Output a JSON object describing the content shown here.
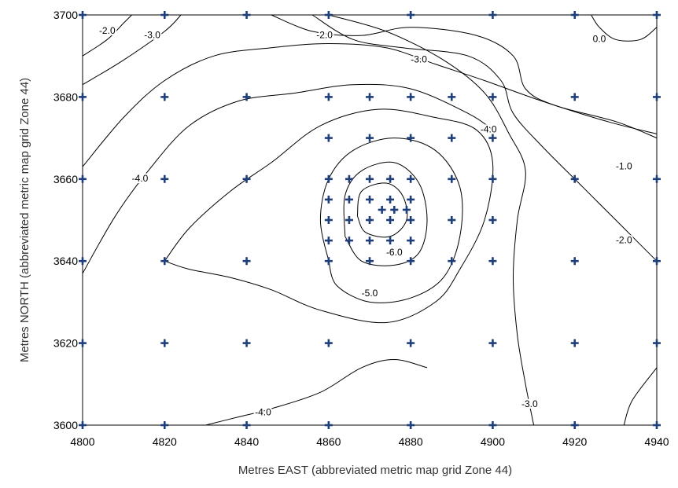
{
  "chart_data": {
    "type": "contour",
    "xlabel": "Metres EAST (abbreviated metric map grid Zone 44)",
    "ylabel": "Metres NORTH (abbreviated metric map grid Zone 44)",
    "xlim": [
      4800,
      4940
    ],
    "ylim": [
      3600,
      3700
    ],
    "xticks": [
      4800,
      4820,
      4840,
      4860,
      4880,
      4900,
      4920,
      4940
    ],
    "yticks": [
      3600,
      3620,
      3640,
      3660,
      3680,
      3700
    ],
    "marker_color": "#1f3f7a",
    "contour_labels": [
      {
        "text": "-2.0",
        "x": 4806,
        "y": 3696
      },
      {
        "text": "-3.0",
        "x": 4817,
        "y": 3695
      },
      {
        "text": "-2.0",
        "x": 4859,
        "y": 3695
      },
      {
        "text": "0.0",
        "x": 4926,
        "y": 3694
      },
      {
        "text": "-3.0",
        "x": 4882,
        "y": 3689
      },
      {
        "text": "-4.0",
        "x": 4899,
        "y": 3672
      },
      {
        "text": "-1.0",
        "x": 4932,
        "y": 3663
      },
      {
        "text": "-4.0",
        "x": 4814,
        "y": 3660
      },
      {
        "text": "-2.0",
        "x": 4932,
        "y": 3645
      },
      {
        "text": "-6.0",
        "x": 4876,
        "y": 3642
      },
      {
        "text": "-5.0",
        "x": 4870,
        "y": 3632
      },
      {
        "text": "-3.0",
        "x": 4909,
        "y": 3605
      },
      {
        "text": "-4.0",
        "x": 4844,
        "y": 3603
      }
    ],
    "contours": [
      {
        "level": "-2.0",
        "points": [
          [
            4800,
            3690
          ],
          [
            4806,
            3694
          ],
          [
            4810,
            3698
          ],
          [
            4812,
            3700
          ]
        ]
      },
      {
        "level": "-2.0",
        "points": [
          [
            4800,
            3683
          ],
          [
            4810,
            3689
          ],
          [
            4820,
            3696
          ],
          [
            4824,
            3700
          ]
        ]
      },
      {
        "level": "-3.0",
        "points": [
          [
            4800,
            3663
          ],
          [
            4810,
            3675
          ],
          [
            4820,
            3684
          ],
          [
            4832,
            3690
          ],
          [
            4846,
            3692
          ],
          [
            4860,
            3693
          ],
          [
            4874,
            3692
          ],
          [
            4886,
            3688
          ],
          [
            4898,
            3684
          ],
          [
            4912,
            3679
          ],
          [
            4928,
            3674
          ],
          [
            4940,
            3671
          ]
        ]
      },
      {
        "level": "-2.0",
        "points": [
          [
            4846,
            3700
          ],
          [
            4856,
            3696
          ],
          [
            4868,
            3695
          ],
          [
            4880,
            3697
          ],
          [
            4896,
            3695
          ],
          [
            4905,
            3690
          ],
          [
            4908,
            3682
          ],
          [
            4915,
            3678
          ],
          [
            4930,
            3674
          ],
          [
            4940,
            3670
          ]
        ]
      },
      {
        "level": "0.0",
        "points": [
          [
            4924,
            3700
          ],
          [
            4926,
            3697
          ],
          [
            4930,
            3694
          ],
          [
            4936,
            3694
          ],
          [
            4940,
            3697
          ]
        ]
      },
      {
        "level": "-3.0",
        "points": [
          [
            4856,
            3700
          ],
          [
            4866,
            3694
          ],
          [
            4878,
            3692
          ],
          [
            4894,
            3690
          ],
          [
            4902,
            3684
          ],
          [
            4905,
            3676
          ],
          [
            4912,
            3668
          ],
          [
            4922,
            3658
          ],
          [
            4932,
            3648
          ],
          [
            4940,
            3640
          ]
        ]
      },
      {
        "level": "-4.0",
        "points": [
          [
            4800,
            3637
          ],
          [
            4808,
            3651
          ],
          [
            4816,
            3662
          ],
          [
            4826,
            3673
          ],
          [
            4838,
            3679
          ],
          [
            4852,
            3681
          ],
          [
            4866,
            3683
          ],
          [
            4880,
            3682
          ],
          [
            4894,
            3676
          ],
          [
            4900,
            3672
          ]
        ]
      },
      {
        "level": "-4.0",
        "points": [
          [
            4860,
            3700
          ],
          [
            4874,
            3696
          ],
          [
            4888,
            3689
          ],
          [
            4898,
            3681
          ],
          [
            4904,
            3671
          ],
          [
            4908,
            3662
          ],
          [
            4906,
            3650
          ],
          [
            4905,
            3636
          ],
          [
            4906,
            3622
          ],
          [
            4908,
            3610
          ],
          [
            4910,
            3600
          ]
        ]
      },
      {
        "level": "-4.0",
        "points": [
          [
            4820,
            3640
          ],
          [
            4826,
            3648
          ],
          [
            4836,
            3657
          ],
          [
            4846,
            3664
          ],
          [
            4858,
            3673
          ],
          [
            4872,
            3677
          ],
          [
            4886,
            3675
          ],
          [
            4896,
            3672
          ],
          [
            4900,
            3664
          ],
          [
            4898,
            3650
          ],
          [
            4892,
            3638
          ],
          [
            4886,
            3630
          ],
          [
            4874,
            3625
          ],
          [
            4858,
            3628
          ],
          [
            4846,
            3633
          ],
          [
            4836,
            3636
          ],
          [
            4826,
            3638
          ],
          [
            4820,
            3640
          ]
        ]
      },
      {
        "level": "-4.0",
        "points": [
          [
            4830,
            3600
          ],
          [
            4838,
            3602
          ],
          [
            4846,
            3604
          ],
          [
            4858,
            3608
          ],
          [
            4868,
            3614
          ],
          [
            4876,
            3616
          ],
          [
            4884,
            3614
          ]
        ]
      },
      {
        "level": "-5.0",
        "points": [
          [
            4860,
            3640
          ],
          [
            4858,
            3650
          ],
          [
            4860,
            3660
          ],
          [
            4866,
            3667
          ],
          [
            4876,
            3670
          ],
          [
            4886,
            3667
          ],
          [
            4892,
            3658
          ],
          [
            4892,
            3646
          ],
          [
            4888,
            3636
          ],
          [
            4880,
            3631
          ],
          [
            4870,
            3630
          ],
          [
            4862,
            3634
          ],
          [
            4860,
            3640
          ]
        ]
      },
      {
        "level": "-6.0",
        "points": [
          [
            4864,
            3646
          ],
          [
            4864,
            3656
          ],
          [
            4868,
            3662
          ],
          [
            4876,
            3664
          ],
          [
            4882,
            3659
          ],
          [
            4884,
            3650
          ],
          [
            4882,
            3642
          ],
          [
            4876,
            3639
          ],
          [
            4868,
            3640
          ],
          [
            4864,
            3646
          ]
        ]
      },
      {
        "level": "",
        "points": [
          [
            4867,
            3651
          ],
          [
            4868,
            3657
          ],
          [
            4874,
            3659
          ],
          [
            4878,
            3656
          ],
          [
            4879,
            3650
          ],
          [
            4875,
            3646
          ],
          [
            4869,
            3647
          ],
          [
            4867,
            3651
          ]
        ]
      },
      {
        "level": "",
        "points": [
          [
            4932,
            3600
          ],
          [
            4934,
            3606
          ],
          [
            4940,
            3614
          ]
        ]
      }
    ],
    "points": [
      [
        4800,
        3700
      ],
      [
        4820,
        3700
      ],
      [
        4840,
        3700
      ],
      [
        4860,
        3700
      ],
      [
        4880,
        3700
      ],
      [
        4900,
        3700
      ],
      [
        4920,
        3700
      ],
      [
        4940,
        3700
      ],
      [
        4800,
        3680
      ],
      [
        4820,
        3680
      ],
      [
        4840,
        3680
      ],
      [
        4860,
        3680
      ],
      [
        4870,
        3680
      ],
      [
        4880,
        3680
      ],
      [
        4890,
        3680
      ],
      [
        4900,
        3680
      ],
      [
        4920,
        3680
      ],
      [
        4940,
        3680
      ],
      [
        4860,
        3670
      ],
      [
        4870,
        3670
      ],
      [
        4880,
        3670
      ],
      [
        4890,
        3670
      ],
      [
        4900,
        3670
      ],
      [
        4800,
        3660
      ],
      [
        4820,
        3660
      ],
      [
        4840,
        3660
      ],
      [
        4860,
        3660
      ],
      [
        4865,
        3660
      ],
      [
        4870,
        3660
      ],
      [
        4875,
        3660
      ],
      [
        4880,
        3660
      ],
      [
        4890,
        3660
      ],
      [
        4900,
        3660
      ],
      [
        4920,
        3660
      ],
      [
        4940,
        3660
      ],
      [
        4860,
        3655
      ],
      [
        4865,
        3655
      ],
      [
        4870,
        3655
      ],
      [
        4875,
        3655
      ],
      [
        4880,
        3655
      ],
      [
        4873,
        3652.5
      ],
      [
        4876,
        3652.5
      ],
      [
        4879,
        3652.5
      ],
      [
        4860,
        3650
      ],
      [
        4865,
        3650
      ],
      [
        4870,
        3650
      ],
      [
        4875,
        3650
      ],
      [
        4880,
        3650
      ],
      [
        4890,
        3650
      ],
      [
        4900,
        3650
      ],
      [
        4860,
        3645
      ],
      [
        4865,
        3645
      ],
      [
        4870,
        3645
      ],
      [
        4875,
        3645
      ],
      [
        4880,
        3645
      ],
      [
        4800,
        3640
      ],
      [
        4820,
        3640
      ],
      [
        4840,
        3640
      ],
      [
        4860,
        3640
      ],
      [
        4870,
        3640
      ],
      [
        4880,
        3640
      ],
      [
        4890,
        3640
      ],
      [
        4900,
        3640
      ],
      [
        4920,
        3640
      ],
      [
        4940,
        3640
      ],
      [
        4800,
        3620
      ],
      [
        4820,
        3620
      ],
      [
        4840,
        3620
      ],
      [
        4860,
        3620
      ],
      [
        4880,
        3620
      ],
      [
        4900,
        3620
      ],
      [
        4920,
        3620
      ],
      [
        4940,
        3620
      ],
      [
        4800,
        3600
      ],
      [
        4820,
        3600
      ],
      [
        4840,
        3600
      ],
      [
        4860,
        3600
      ],
      [
        4880,
        3600
      ],
      [
        4900,
        3600
      ],
      [
        4920,
        3600
      ],
      [
        4940,
        3600
      ]
    ]
  }
}
